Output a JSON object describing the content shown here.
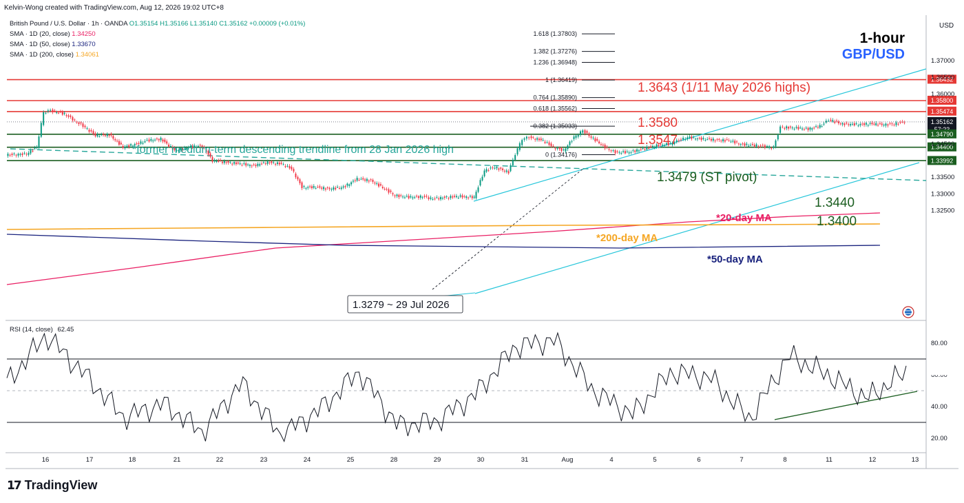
{
  "header": {
    "caption": "Kelvin-Wong created with TradingView.com, Aug 12, 2026 19:02 UTC+8",
    "symbol_line_prefix": "British Pound / U.S. Dollar · 1h · OANDA",
    "ohlc": {
      "o": "O1.35154",
      "h": "H1.35166",
      "l": "L1.35140",
      "c": "C1.35162",
      "chg": "+0.00009 (+0.01%)"
    },
    "sma20": {
      "label": "SMA · 1D (20, close)",
      "value": "1.34250",
      "color": "#e91e63"
    },
    "sma50": {
      "label": "SMA · 1D (50, close)",
      "value": "1.33670",
      "color": "#1a237e"
    },
    "sma200": {
      "label": "SMA · 1D (200, close)",
      "value": "1.34061",
      "color": "#f5a623"
    }
  },
  "corner": {
    "timeframe": "1-hour",
    "pair": "GBP/USD"
  },
  "price_axis": {
    "currency": "USD",
    "ticks": [
      "1.37000",
      "1.36500",
      "1.36000",
      "1.34500",
      "1.33500",
      "1.33000",
      "1.32500"
    ],
    "tags": [
      {
        "text": "1.36432",
        "color": "#e53935",
        "value": 1.36432
      },
      {
        "text": "1.35800",
        "color": "#e53935",
        "value": 1.358
      },
      {
        "text": "1.35474",
        "color": "#e53935",
        "value": 1.35474
      },
      {
        "text": "1.35162",
        "sub": "57:23",
        "color": "#131722",
        "value": 1.35162
      },
      {
        "text": "1.34790",
        "color": "#1b5e20",
        "value": 1.3479
      },
      {
        "text": "1.34400",
        "color": "#1b5e20",
        "value": 1.344
      },
      {
        "text": "1.33992",
        "color": "#1b5e20",
        "value": 1.33992
      }
    ]
  },
  "time_axis": {
    "labels": [
      "16",
      "17",
      "18",
      "21",
      "22",
      "23",
      "24",
      "25",
      "28",
      "29",
      "30",
      "31",
      "Aug",
      "4",
      "5",
      "6",
      "7",
      "8",
      "11",
      "12",
      "13"
    ]
  },
  "rsi": {
    "legend": "RSI (14, close)",
    "value": "62.45",
    "ticks": [
      "80.00",
      "60.00",
      "40.00",
      "20.00"
    ],
    "overbought": 70,
    "oversold": 30,
    "mid": 50
  },
  "annotations": {
    "resist_1": "1.3643 (1/11 May 2026 highs)",
    "resist_2": "1.3580",
    "resist_3": "1.3547",
    "trendline_note": "*former medium-term descending trendline from 28 Jan 2026 high",
    "pivot": "1.3479 (ST pivot)",
    "support_1": "1.3440",
    "support_2": "1.3400",
    "ma20_note": "*20-day MA",
    "ma200_note": "*200-day MA",
    "ma50_note": "*50-day MA",
    "low_note": "1.3279 ~ 29 Jul 2026"
  },
  "fib_levels": [
    {
      "label": "1.618 (1.37803)",
      "value": 1.37803
    },
    {
      "label": "1.382 (1.37276)",
      "value": 1.37276
    },
    {
      "label": "1.236 (1.36948)",
      "value": 1.36948
    },
    {
      "label": "1 (1.36419)",
      "value": 1.36419
    },
    {
      "label": "0.764 (1.35890)",
      "value": 1.3589
    },
    {
      "label": "0.618 (1.35562)",
      "value": 1.35562
    },
    {
      "label": "0.382 (1.35033)",
      "value": 1.35033
    },
    {
      "label": "0 (1.34176)",
      "value": 1.34176
    }
  ],
  "brand": "TradingView",
  "chart_data": {
    "type": "line",
    "title": "GBP/USD",
    "timeframe": "1-hour",
    "price_range": [
      1.3225,
      1.3745
    ],
    "price_series_approx": {
      "x_day_labels": [
        "16",
        "17",
        "18",
        "21",
        "22",
        "23",
        "24",
        "25",
        "28",
        "29",
        "30",
        "31",
        "Aug",
        "4",
        "5",
        "6",
        "7",
        "8",
        "11",
        "12"
      ],
      "close_approx": [
        1.3545,
        1.3482,
        1.345,
        1.3438,
        1.3395,
        1.3385,
        1.331,
        1.3345,
        1.329,
        1.3285,
        1.33,
        1.3475,
        1.348,
        1.343,
        1.345,
        1.3468,
        1.3448,
        1.35,
        1.3515,
        1.3512
      ]
    },
    "horizontal_levels": [
      {
        "value": 1.3643,
        "color": "#e53935"
      },
      {
        "value": 1.358,
        "color": "#e53935"
      },
      {
        "value": 1.3547,
        "color": "#e53935"
      },
      {
        "value": 1.3479,
        "color": "#1b5e20"
      },
      {
        "value": 1.344,
        "color": "#1b5e20"
      },
      {
        "value": 1.34,
        "color": "#1b5e20"
      }
    ],
    "rsi_series_approx": [
      55,
      85,
      60,
      33,
      42,
      24,
      55,
      22,
      38,
      62,
      28,
      31,
      48,
      78,
      82,
      50,
      35,
      62,
      58,
      32,
      72,
      60,
      45,
      62
    ]
  }
}
